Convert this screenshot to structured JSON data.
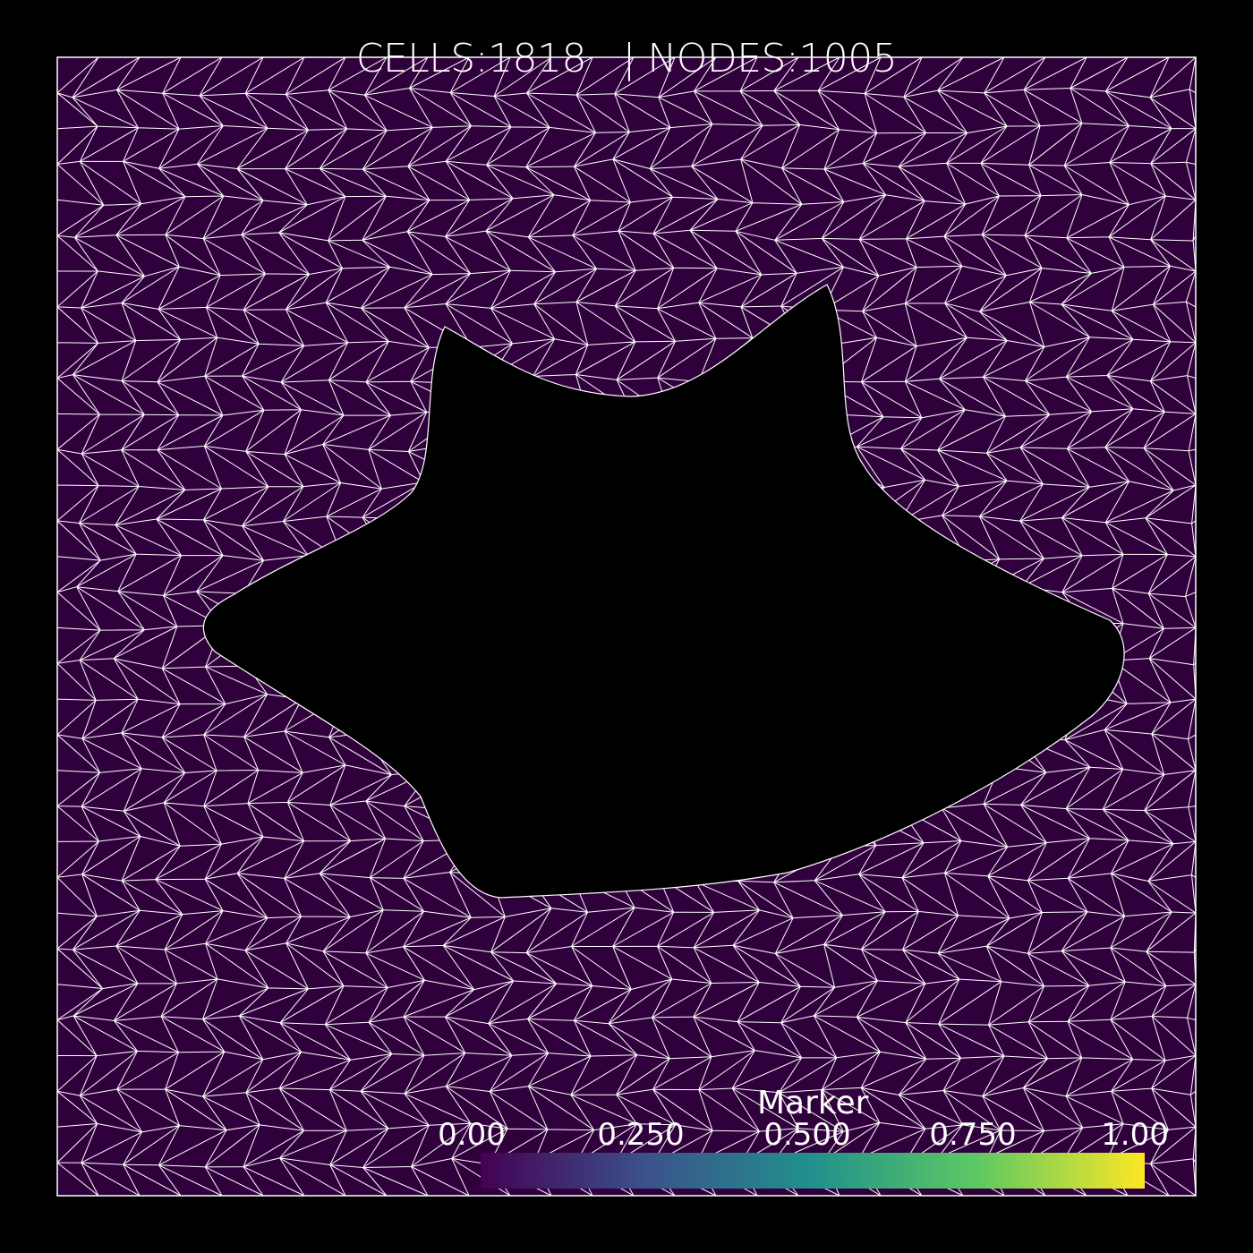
{
  "header": {
    "cells_label": "CELLS:",
    "cells_value": "1818",
    "separator": "|",
    "nodes_label": "NODES:",
    "nodes_value": "1005"
  },
  "colorbar": {
    "title": "Marker",
    "ticks": [
      "0.00",
      "0.250",
      "0.500",
      "0.750",
      "1.00"
    ],
    "range": [
      0,
      1
    ],
    "colormap": [
      "#440154",
      "#3b528b",
      "#21918c",
      "#5ec962",
      "#fde725"
    ]
  },
  "scene": {
    "background_color": "#000000",
    "mesh_fill_color": "#30003d",
    "edge_color": "#ffffff",
    "cell_type": "triangle",
    "marker_value": 0
  }
}
